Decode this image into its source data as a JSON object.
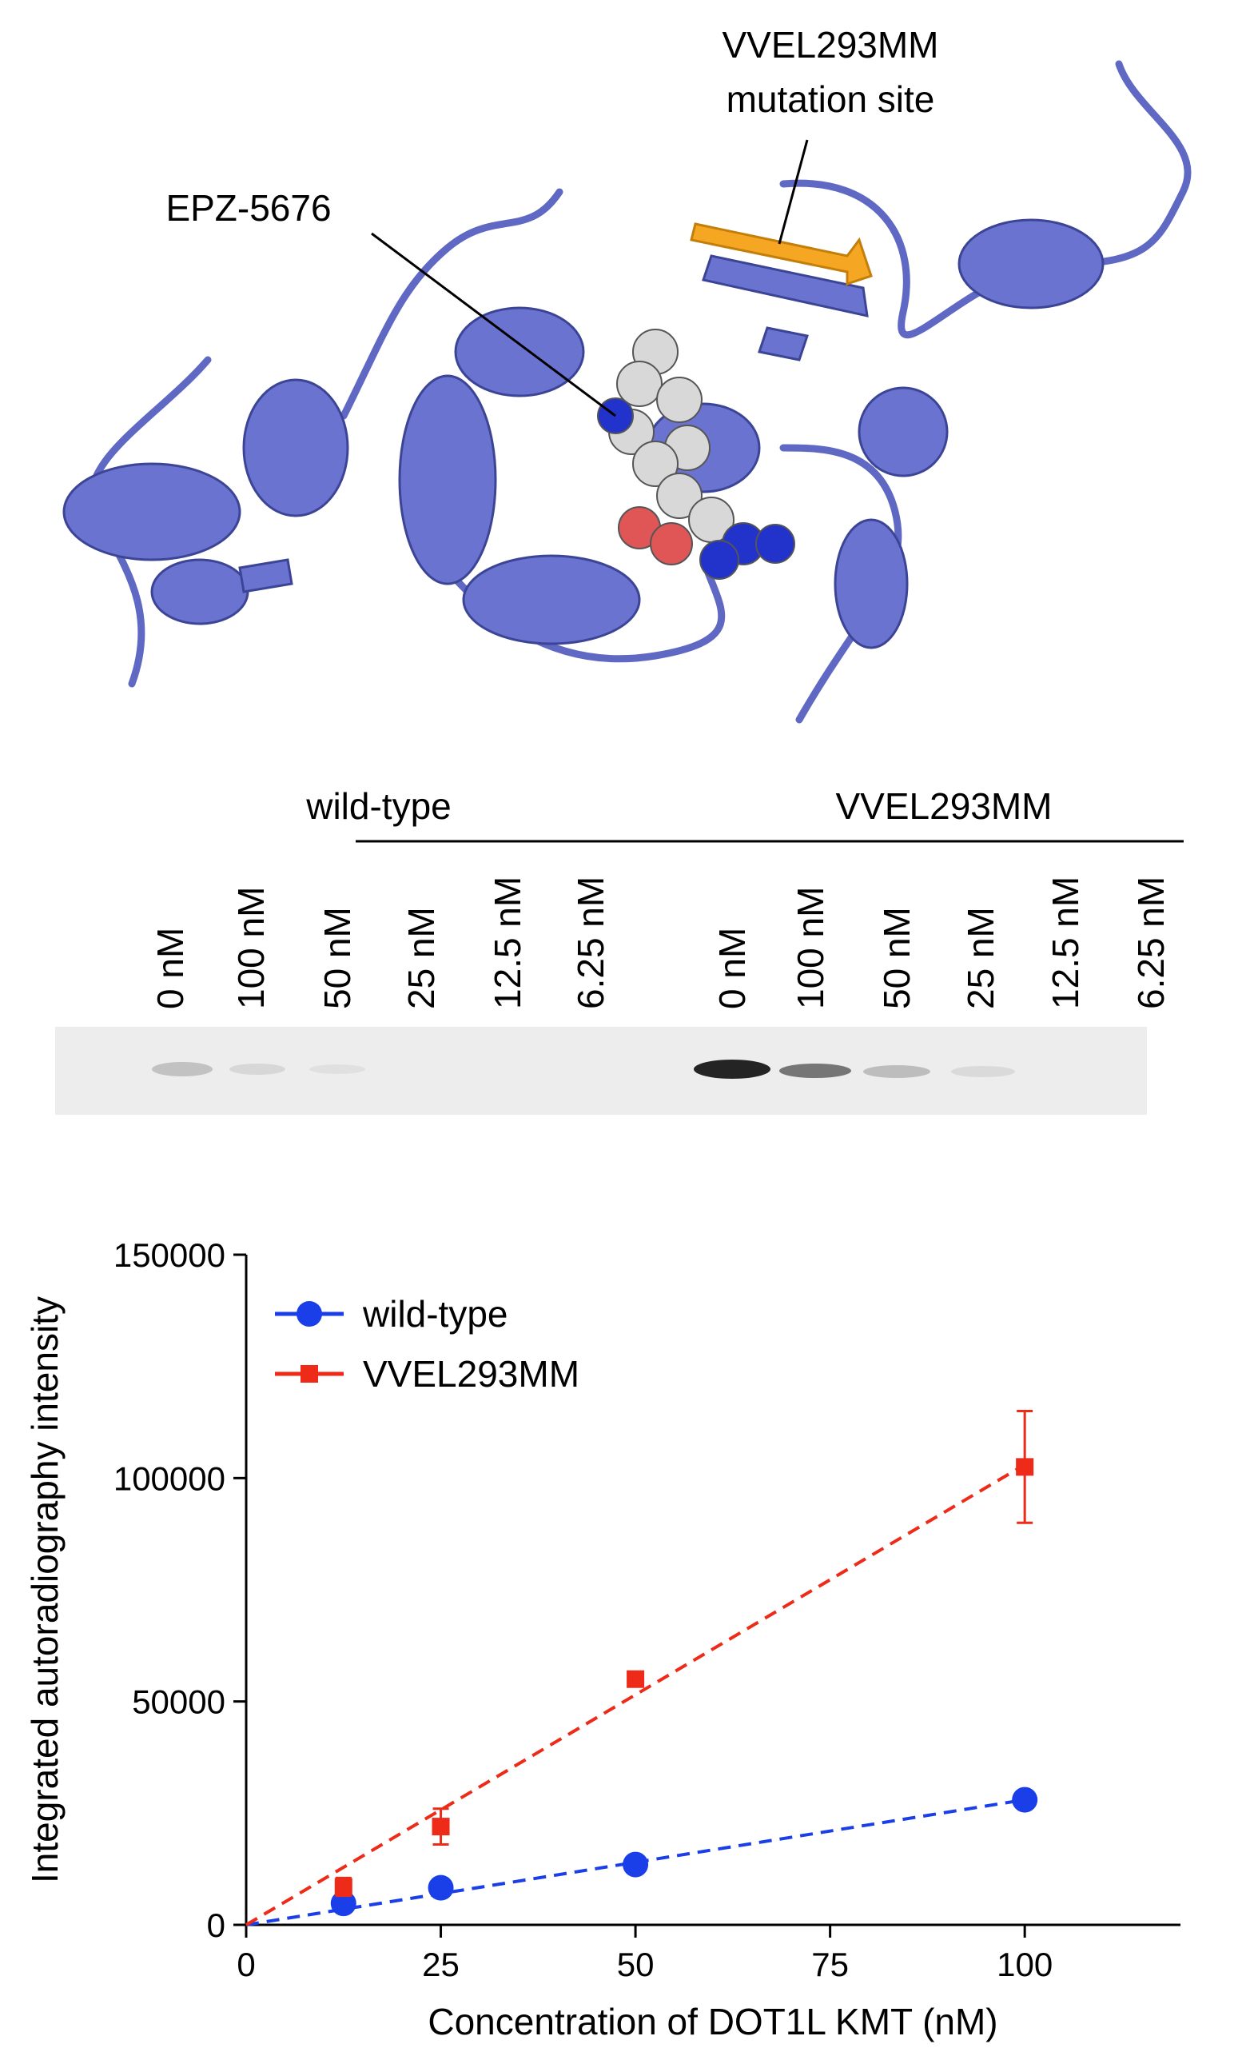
{
  "structure": {
    "labels": [
      "VVEL293MM",
      "mutation site",
      "EPZ-5676"
    ]
  },
  "gel": {
    "groups": [
      "wild-type",
      "VVEL293MM"
    ],
    "lanes": [
      "0 nM",
      "100 nM",
      "50 nM",
      "25 nM",
      "12.5 nM",
      "6.25 nM",
      "0 nM",
      "100 nM",
      "50 nM",
      "25 nM",
      "12.5 nM",
      "6.25 nM"
    ]
  },
  "chart_data": {
    "type": "scatter",
    "x_label": "Concentration of DOT1L KMT (nM)",
    "y_label": "Integrated autoradiography intensity",
    "x": [
      12.5,
      25,
      50,
      100
    ],
    "xlim": [
      0,
      120
    ],
    "xticks": [
      0,
      25,
      50,
      75,
      100
    ],
    "ylim": [
      0,
      150000
    ],
    "yticks": [
      0,
      50000,
      100000,
      150000
    ],
    "legend": "upper left",
    "series": [
      {
        "name": "wild-type",
        "color": "#1a3ee8",
        "marker": "circle",
        "values": [
          4800,
          8300,
          13500,
          28000
        ],
        "errors": [
          600,
          600,
          700,
          1000
        ],
        "trendline": {
          "x": [
            0,
            100
          ],
          "values": [
            0,
            28000
          ]
        }
      },
      {
        "name": "VVEL293MM",
        "color": "#ee2a18",
        "marker": "square",
        "values": [
          8500,
          22000,
          55000,
          102500
        ],
        "errors": [
          2000,
          4000,
          1000,
          12500
        ],
        "trendline": {
          "x": [
            0,
            100
          ],
          "values": [
            0,
            103000
          ]
        }
      }
    ]
  }
}
